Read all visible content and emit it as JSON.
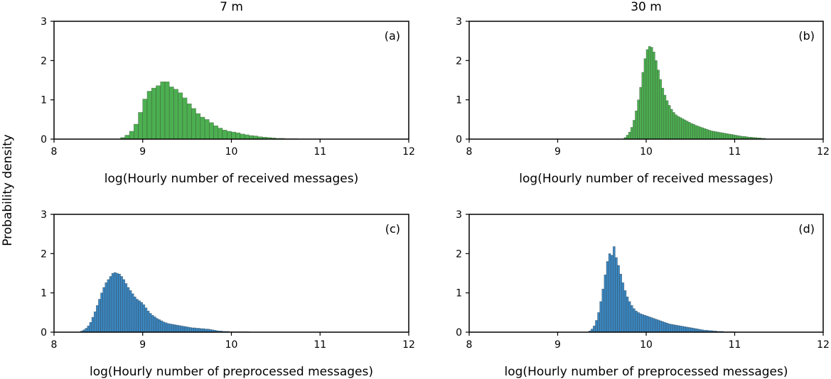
{
  "figure": {
    "ylabel": "Probability density",
    "colors": {
      "received": "#4caf50",
      "preprocessed": "#3a86c0",
      "edge": "#2b2b2b"
    }
  },
  "chart_data": [
    {
      "type": "bar",
      "panel_label": "(a)",
      "title": "7 m",
      "xlabel": "log(Hourly number of received messages)",
      "ylabel": "",
      "xlim": [
        8,
        12
      ],
      "ylim": [
        0,
        3
      ],
      "xticks": [
        "8",
        "9",
        "10",
        "11",
        "12"
      ],
      "yticks": [
        "0",
        "1",
        "2",
        "3"
      ],
      "grid": false,
      "bin_start": 8.75,
      "bin_width": 0.05,
      "values": [
        0.04,
        0.1,
        0.2,
        0.38,
        0.68,
        1.02,
        1.22,
        1.3,
        1.36,
        1.46,
        1.46,
        1.33,
        1.27,
        1.18,
        1.05,
        0.9,
        0.78,
        0.65,
        0.56,
        0.5,
        0.42,
        0.34,
        0.28,
        0.23,
        0.2,
        0.18,
        0.16,
        0.13,
        0.11,
        0.09,
        0.08,
        0.06,
        0.05,
        0.04,
        0.03,
        0.02,
        0.02,
        0.01,
        0.01,
        0.01
      ]
    },
    {
      "type": "bar",
      "panel_label": "(b)",
      "title": "30 m",
      "xlabel": "log(Hourly number of received messages)",
      "ylabel": "",
      "xlim": [
        8,
        12
      ],
      "ylim": [
        0,
        3
      ],
      "xticks": [
        "8",
        "9",
        "10",
        "11",
        "12"
      ],
      "yticks": [
        "0",
        "1",
        "2",
        "3"
      ],
      "grid": false,
      "bin_start": 9.75,
      "bin_width": 0.025,
      "values": [
        0.04,
        0.1,
        0.18,
        0.3,
        0.48,
        0.72,
        1.0,
        1.32,
        1.7,
        2.05,
        2.28,
        2.36,
        2.34,
        2.22,
        2.0,
        1.76,
        1.52,
        1.3,
        1.12,
        0.98,
        0.86,
        0.76,
        0.68,
        0.62,
        0.58,
        0.55,
        0.52,
        0.49,
        0.46,
        0.43,
        0.4,
        0.38,
        0.35,
        0.33,
        0.31,
        0.29,
        0.27,
        0.25,
        0.23,
        0.21,
        0.2,
        0.19,
        0.18,
        0.17,
        0.16,
        0.15,
        0.14,
        0.13,
        0.12,
        0.11,
        0.1,
        0.09,
        0.08,
        0.07,
        0.07,
        0.06,
        0.05,
        0.05,
        0.04,
        0.04,
        0.03,
        0.03,
        0.02,
        0.02
      ]
    },
    {
      "type": "bar",
      "panel_label": "(c)",
      "title": "",
      "xlabel": "log(Hourly number of preprocessed messages)",
      "ylabel": "",
      "xlim": [
        8,
        12
      ],
      "ylim": [
        0,
        3
      ],
      "xticks": [
        "8",
        "9",
        "10",
        "11",
        "12"
      ],
      "yticks": [
        "0",
        "1",
        "2",
        "3"
      ],
      "grid": false,
      "bin_start": 8.3,
      "bin_width": 0.025,
      "values": [
        0.03,
        0.06,
        0.1,
        0.16,
        0.25,
        0.38,
        0.52,
        0.68,
        0.84,
        1.0,
        1.14,
        1.26,
        1.34,
        1.42,
        1.5,
        1.52,
        1.5,
        1.48,
        1.42,
        1.34,
        1.24,
        1.14,
        1.06,
        0.98,
        0.9,
        0.84,
        0.8,
        0.76,
        0.7,
        0.62,
        0.54,
        0.48,
        0.43,
        0.39,
        0.35,
        0.32,
        0.29,
        0.26,
        0.24,
        0.22,
        0.21,
        0.2,
        0.19,
        0.18,
        0.17,
        0.16,
        0.15,
        0.14,
        0.13,
        0.12,
        0.11,
        0.11,
        0.1,
        0.1,
        0.09,
        0.09,
        0.08,
        0.08,
        0.07,
        0.06,
        0.05,
        0.04,
        0.03,
        0.03,
        0.02,
        0.02,
        0.02,
        0.01,
        0.01,
        0.01,
        0.01,
        0.01,
        0.01,
        0.01,
        0.01,
        0.01
      ]
    },
    {
      "type": "bar",
      "panel_label": "(d)",
      "title": "",
      "xlabel": "log(Hourly number of preprocessed messages)",
      "ylabel": "",
      "xlim": [
        8,
        12
      ],
      "ylim": [
        0,
        3
      ],
      "xticks": [
        "8",
        "9",
        "10",
        "11",
        "12"
      ],
      "yticks": [
        "0",
        "1",
        "2",
        "3"
      ],
      "grid": false,
      "bin_start": 9.35,
      "bin_width": 0.025,
      "values": [
        0.03,
        0.08,
        0.16,
        0.3,
        0.5,
        0.78,
        1.1,
        1.46,
        1.8,
        2.0,
        1.96,
        2.18,
        1.9,
        1.7,
        1.48,
        1.26,
        1.06,
        0.9,
        0.78,
        0.68,
        0.6,
        0.54,
        0.5,
        0.47,
        0.45,
        0.43,
        0.41,
        0.39,
        0.37,
        0.35,
        0.33,
        0.31,
        0.29,
        0.27,
        0.25,
        0.23,
        0.21,
        0.2,
        0.19,
        0.18,
        0.17,
        0.16,
        0.15,
        0.14,
        0.13,
        0.12,
        0.11,
        0.1,
        0.09,
        0.08,
        0.07,
        0.06,
        0.05,
        0.05,
        0.04,
        0.04,
        0.03,
        0.03,
        0.02,
        0.02,
        0.02,
        0.01,
        0.01,
        0.01,
        0.01,
        0.01
      ]
    }
  ]
}
